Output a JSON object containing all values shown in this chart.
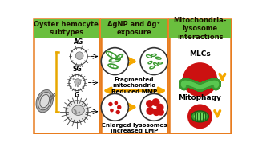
{
  "panel1_title": "Oyster hemocyte\nsubtypes",
  "panel2_title": "AgNP and Ag⁺\nexposure",
  "panel3_title": "Mitochondria-\nlysosome\ninteractions",
  "header_bg": "#6abf3e",
  "header_text_color": "#1a1100",
  "panel_border_color": "#e87c1e",
  "outer_bg": "#ffffff",
  "arrow_color": "#f5a800",
  "mito_color": "#3a9a30",
  "lyso_color": "#cc1111",
  "center_text1": "Fragmented\nmitochondria\nReduced MMP",
  "center_text2": "Enlarged lysosomes\nIncreased LMP",
  "mlc_label": "MLCs",
  "mitophagy_label": "Mitophagy",
  "ag_label": "AG",
  "sg_label": "SG",
  "g_label": "G"
}
